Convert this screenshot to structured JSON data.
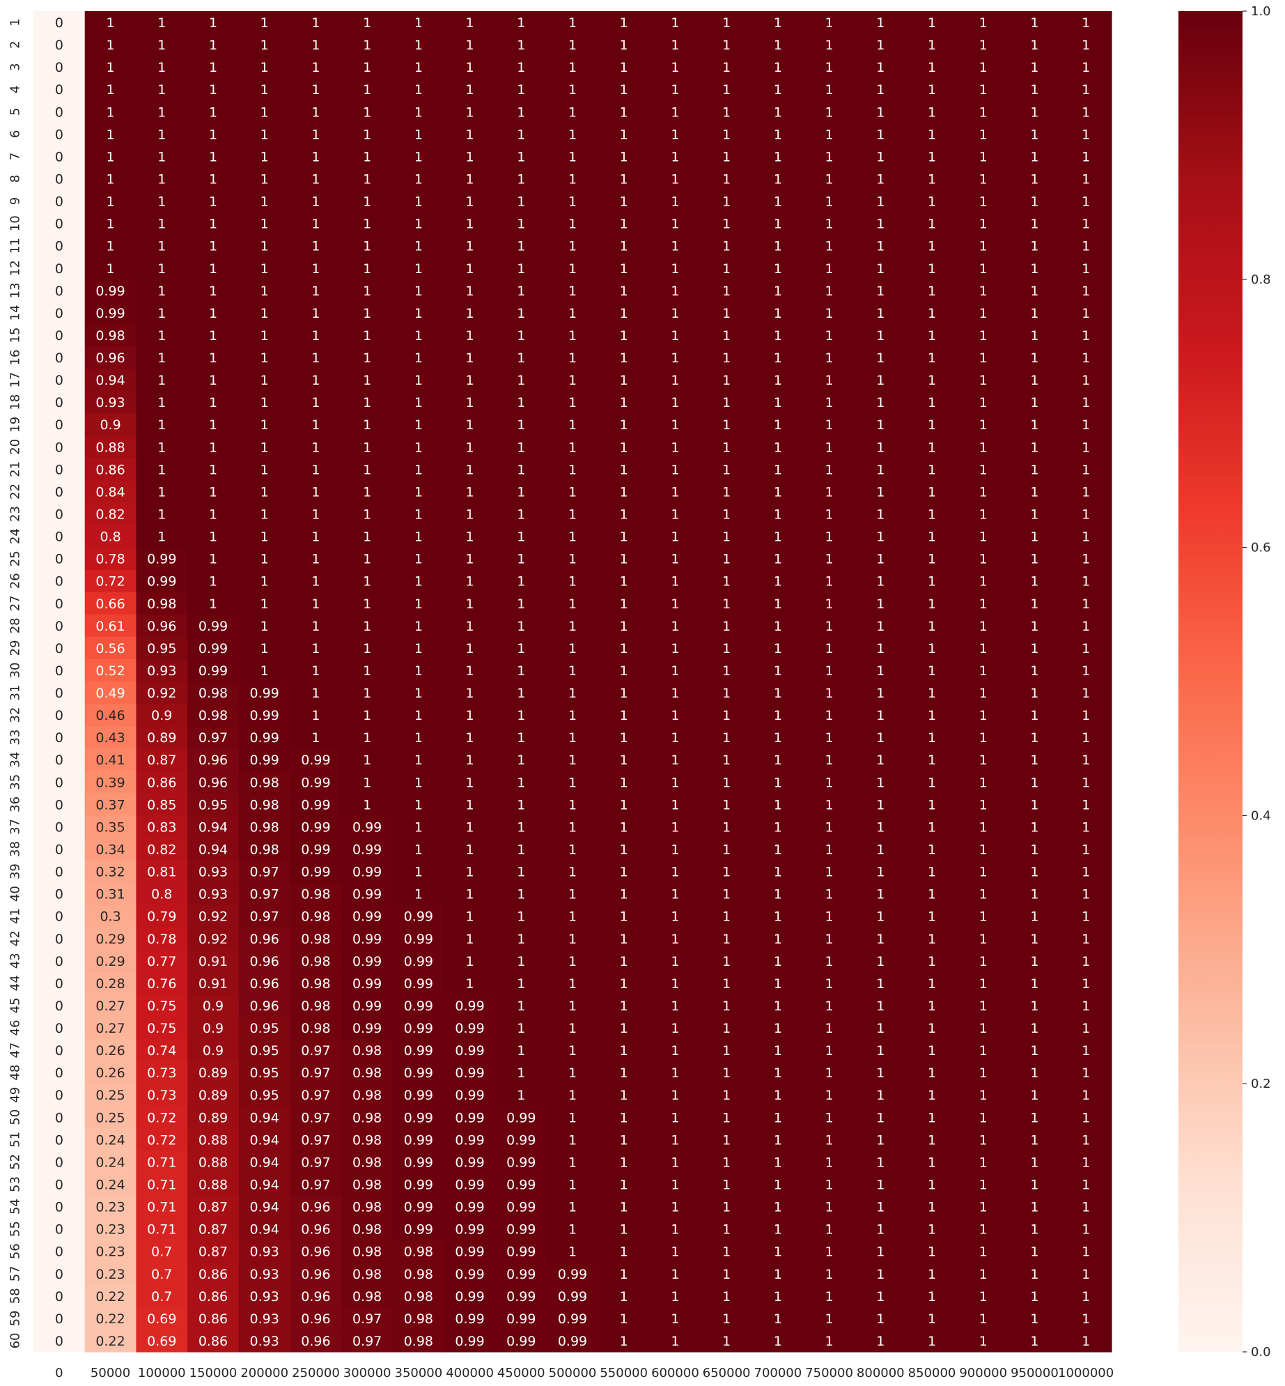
{
  "chart_data": {
    "type": "heatmap",
    "title": "",
    "xlabel": "",
    "ylabel": "",
    "colormap": "Reds",
    "colormap_stops": [
      "#fff5f0",
      "#fee0d2",
      "#fcbba1",
      "#fc9272",
      "#fb6a4a",
      "#ef3b2c",
      "#cb181d",
      "#a50f15",
      "#67000d"
    ],
    "vmin": 0.0,
    "vmax": 1.0,
    "x_categories": [
      "0",
      "50000",
      "100000",
      "150000",
      "200000",
      "250000",
      "300000",
      "350000",
      "400000",
      "450000",
      "500000",
      "550000",
      "600000",
      "650000",
      "700000",
      "750000",
      "800000",
      "850000",
      "900000",
      "950000",
      "1000000"
    ],
    "y_categories": [
      "1",
      "2",
      "3",
      "4",
      "5",
      "6",
      "7",
      "8",
      "9",
      "10",
      "11",
      "12",
      "13",
      "14",
      "15",
      "16",
      "17",
      "18",
      "19",
      "20",
      "21",
      "22",
      "23",
      "24",
      "25",
      "26",
      "27",
      "28",
      "29",
      "30",
      "31",
      "32",
      "33",
      "34",
      "35",
      "36",
      "37",
      "38",
      "39",
      "40",
      "41",
      "42",
      "43",
      "44",
      "45",
      "46",
      "47",
      "48",
      "49",
      "50",
      "51",
      "52",
      "53",
      "54",
      "55",
      "56",
      "57",
      "58",
      "59",
      "60"
    ],
    "columns_2_to_10_values": {
      "50000": [
        "1",
        "1",
        "1",
        "1",
        "1",
        "1",
        "1",
        "1",
        "1",
        "1",
        "1",
        "1",
        "0.99",
        "0.99",
        "0.98",
        "0.96",
        "0.94",
        "0.93",
        "0.9",
        "0.88",
        "0.86",
        "0.84",
        "0.82",
        "0.8",
        "0.78",
        "0.72",
        "0.66",
        "0.61",
        "0.56",
        "0.52",
        "0.49",
        "0.46",
        "0.43",
        "0.41",
        "0.39",
        "0.37",
        "0.35",
        "0.34",
        "0.32",
        "0.31",
        "0.3",
        "0.29",
        "0.29",
        "0.28",
        "0.27",
        "0.27",
        "0.26",
        "0.26",
        "0.25",
        "0.25",
        "0.24",
        "0.24",
        "0.24",
        "0.23",
        "0.23",
        "0.23",
        "0.23",
        "0.22",
        "0.22",
        "0.22"
      ],
      "100000": [
        "1",
        "1",
        "1",
        "1",
        "1",
        "1",
        "1",
        "1",
        "1",
        "1",
        "1",
        "1",
        "1",
        "1",
        "1",
        "1",
        "1",
        "1",
        "1",
        "1",
        "1",
        "1",
        "1",
        "1",
        "0.99",
        "0.99",
        "0.98",
        "0.96",
        "0.95",
        "0.93",
        "0.92",
        "0.9",
        "0.89",
        "0.87",
        "0.86",
        "0.85",
        "0.83",
        "0.82",
        "0.81",
        "0.8",
        "0.79",
        "0.78",
        "0.77",
        "0.76",
        "0.75",
        "0.75",
        "0.74",
        "0.73",
        "0.73",
        "0.72",
        "0.72",
        "0.71",
        "0.71",
        "0.71",
        "0.71",
        "0.7",
        "0.7",
        "0.7",
        "0.69",
        "0.69"
      ],
      "150000": [
        "1",
        "1",
        "1",
        "1",
        "1",
        "1",
        "1",
        "1",
        "1",
        "1",
        "1",
        "1",
        "1",
        "1",
        "1",
        "1",
        "1",
        "1",
        "1",
        "1",
        "1",
        "1",
        "1",
        "1",
        "1",
        "1",
        "1",
        "0.99",
        "0.99",
        "0.99",
        "0.98",
        "0.98",
        "0.97",
        "0.96",
        "0.96",
        "0.95",
        "0.94",
        "0.94",
        "0.93",
        "0.93",
        "0.92",
        "0.92",
        "0.91",
        "0.91",
        "0.9",
        "0.9",
        "0.9",
        "0.89",
        "0.89",
        "0.89",
        "0.88",
        "0.88",
        "0.88",
        "0.87",
        "0.87",
        "0.87",
        "0.86",
        "0.86",
        "0.86",
        "0.86"
      ],
      "200000": [
        "1",
        "1",
        "1",
        "1",
        "1",
        "1",
        "1",
        "1",
        "1",
        "1",
        "1",
        "1",
        "1",
        "1",
        "1",
        "1",
        "1",
        "1",
        "1",
        "1",
        "1",
        "1",
        "1",
        "1",
        "1",
        "1",
        "1",
        "1",
        "1",
        "1",
        "0.99",
        "0.99",
        "0.99",
        "0.99",
        "0.98",
        "0.98",
        "0.98",
        "0.98",
        "0.97",
        "0.97",
        "0.97",
        "0.96",
        "0.96",
        "0.96",
        "0.96",
        "0.95",
        "0.95",
        "0.95",
        "0.95",
        "0.94",
        "0.94",
        "0.94",
        "0.94",
        "0.94",
        "0.94",
        "0.93",
        "0.93",
        "0.93",
        "0.93",
        "0.93"
      ],
      "250000": [
        "1",
        "1",
        "1",
        "1",
        "1",
        "1",
        "1",
        "1",
        "1",
        "1",
        "1",
        "1",
        "1",
        "1",
        "1",
        "1",
        "1",
        "1",
        "1",
        "1",
        "1",
        "1",
        "1",
        "1",
        "1",
        "1",
        "1",
        "1",
        "1",
        "1",
        "1",
        "1",
        "1",
        "0.99",
        "0.99",
        "0.99",
        "0.99",
        "0.99",
        "0.99",
        "0.98",
        "0.98",
        "0.98",
        "0.98",
        "0.98",
        "0.98",
        "0.98",
        "0.97",
        "0.97",
        "0.97",
        "0.97",
        "0.97",
        "0.97",
        "0.97",
        "0.96",
        "0.96",
        "0.96",
        "0.96",
        "0.96",
        "0.96",
        "0.96"
      ],
      "300000": [
        "1",
        "1",
        "1",
        "1",
        "1",
        "1",
        "1",
        "1",
        "1",
        "1",
        "1",
        "1",
        "1",
        "1",
        "1",
        "1",
        "1",
        "1",
        "1",
        "1",
        "1",
        "1",
        "1",
        "1",
        "1",
        "1",
        "1",
        "1",
        "1",
        "1",
        "1",
        "1",
        "1",
        "1",
        "1",
        "1",
        "0.99",
        "0.99",
        "0.99",
        "0.99",
        "0.99",
        "0.99",
        "0.99",
        "0.99",
        "0.99",
        "0.99",
        "0.98",
        "0.98",
        "0.98",
        "0.98",
        "0.98",
        "0.98",
        "0.98",
        "0.98",
        "0.98",
        "0.98",
        "0.98",
        "0.98",
        "0.97",
        "0.97"
      ],
      "350000": [
        "1",
        "1",
        "1",
        "1",
        "1",
        "1",
        "1",
        "1",
        "1",
        "1",
        "1",
        "1",
        "1",
        "1",
        "1",
        "1",
        "1",
        "1",
        "1",
        "1",
        "1",
        "1",
        "1",
        "1",
        "1",
        "1",
        "1",
        "1",
        "1",
        "1",
        "1",
        "1",
        "1",
        "1",
        "1",
        "1",
        "1",
        "1",
        "1",
        "1",
        "0.99",
        "0.99",
        "0.99",
        "0.99",
        "0.99",
        "0.99",
        "0.99",
        "0.99",
        "0.99",
        "0.99",
        "0.99",
        "0.99",
        "0.99",
        "0.99",
        "0.99",
        "0.98",
        "0.98",
        "0.98",
        "0.98",
        "0.98"
      ],
      "400000": [
        "1",
        "1",
        "1",
        "1",
        "1",
        "1",
        "1",
        "1",
        "1",
        "1",
        "1",
        "1",
        "1",
        "1",
        "1",
        "1",
        "1",
        "1",
        "1",
        "1",
        "1",
        "1",
        "1",
        "1",
        "1",
        "1",
        "1",
        "1",
        "1",
        "1",
        "1",
        "1",
        "1",
        "1",
        "1",
        "1",
        "1",
        "1",
        "1",
        "1",
        "1",
        "1",
        "1",
        "1",
        "0.99",
        "0.99",
        "0.99",
        "0.99",
        "0.99",
        "0.99",
        "0.99",
        "0.99",
        "0.99",
        "0.99",
        "0.99",
        "0.99",
        "0.99",
        "0.99",
        "0.99",
        "0.99"
      ],
      "450000": [
        "1",
        "1",
        "1",
        "1",
        "1",
        "1",
        "1",
        "1",
        "1",
        "1",
        "1",
        "1",
        "1",
        "1",
        "1",
        "1",
        "1",
        "1",
        "1",
        "1",
        "1",
        "1",
        "1",
        "1",
        "1",
        "1",
        "1",
        "1",
        "1",
        "1",
        "1",
        "1",
        "1",
        "1",
        "1",
        "1",
        "1",
        "1",
        "1",
        "1",
        "1",
        "1",
        "1",
        "1",
        "1",
        "1",
        "1",
        "1",
        "1",
        "0.99",
        "0.99",
        "0.99",
        "0.99",
        "0.99",
        "0.99",
        "0.99",
        "0.99",
        "0.99",
        "0.99",
        "0.99"
      ],
      "500000": [
        "1",
        "1",
        "1",
        "1",
        "1",
        "1",
        "1",
        "1",
        "1",
        "1",
        "1",
        "1",
        "1",
        "1",
        "1",
        "1",
        "1",
        "1",
        "1",
        "1",
        "1",
        "1",
        "1",
        "1",
        "1",
        "1",
        "1",
        "1",
        "1",
        "1",
        "1",
        "1",
        "1",
        "1",
        "1",
        "1",
        "1",
        "1",
        "1",
        "1",
        "1",
        "1",
        "1",
        "1",
        "1",
        "1",
        "1",
        "1",
        "1",
        "1",
        "1",
        "1",
        "1",
        "1",
        "1",
        "1",
        "0.99",
        "0.99",
        "0.99",
        "0.99"
      ]
    },
    "column_0_value": "0",
    "columns_11_to_20_value": "1",
    "colorbar_ticks": [
      "0.0",
      "0.2",
      "0.4",
      "0.6",
      "0.8",
      "1.0"
    ],
    "colorbar_tick_values": [
      0.0,
      0.2,
      0.4,
      0.6,
      0.8,
      1.0
    ]
  }
}
